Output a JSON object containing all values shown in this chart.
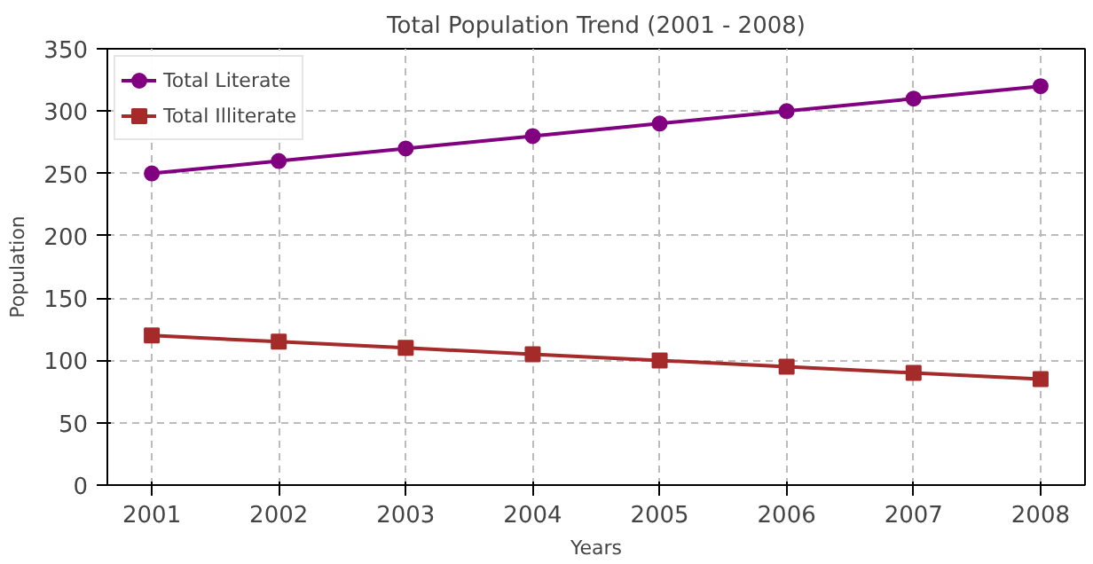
{
  "chart_data": {
    "type": "line",
    "title": "Total Population Trend (2001 - 2008)",
    "xlabel": "Years",
    "ylabel": "Population",
    "x": [
      2001,
      2002,
      2003,
      2004,
      2005,
      2006,
      2007,
      2008
    ],
    "series": [
      {
        "name": "Total Literate",
        "color": "#800080",
        "marker": "circle",
        "values": [
          250,
          260,
          270,
          280,
          290,
          300,
          310,
          320
        ]
      },
      {
        "name": "Total Illiterate",
        "color": "#a52a2a",
        "marker": "square",
        "values": [
          120,
          115,
          110,
          105,
          100,
          95,
          90,
          85
        ]
      }
    ],
    "xlim": [
      2000.65,
      2008.35
    ],
    "xticks": [
      2001,
      2002,
      2003,
      2004,
      2005,
      2006,
      2007,
      2008
    ],
    "ylim": [
      0,
      350
    ],
    "yticks": [
      0,
      50,
      100,
      150,
      200,
      250,
      300,
      350
    ],
    "grid": true,
    "legend": "top left",
    "line_style": "solid"
  }
}
